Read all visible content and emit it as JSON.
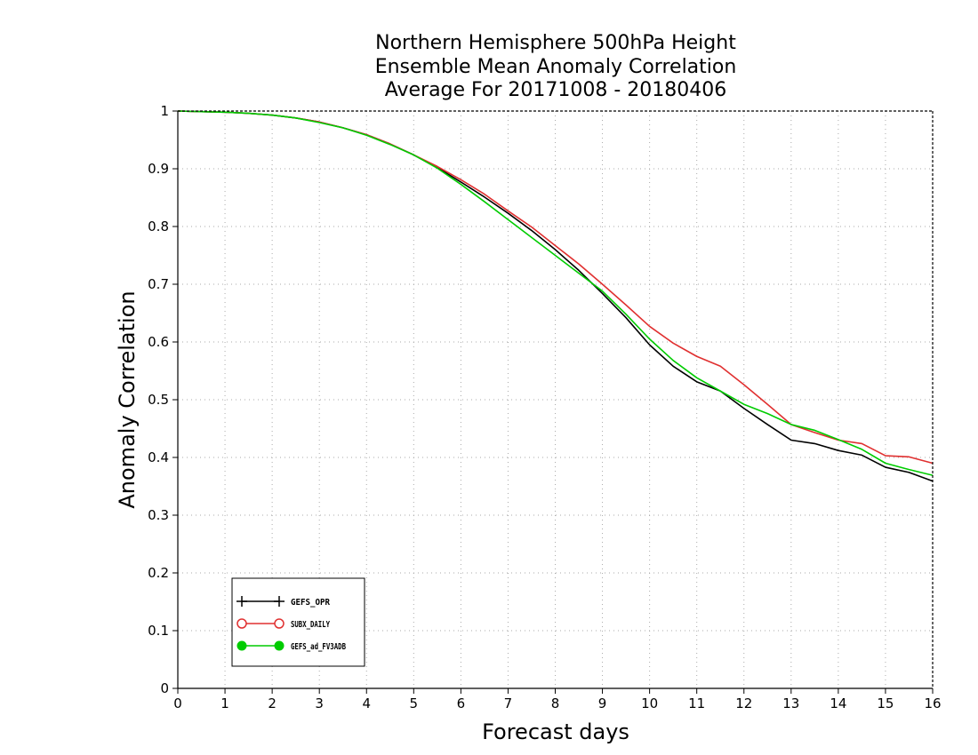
{
  "chart_data": {
    "type": "line",
    "title_lines": [
      "Northern Hemisphere 500hPa Height",
      "Ensemble Mean Anomaly Correlation",
      "Average For 20171008 - 20180406"
    ],
    "xlabel": "Forecast days",
    "ylabel": "Anomaly Correlation",
    "xlim": [
      0,
      16
    ],
    "ylim": [
      0,
      1
    ],
    "xticks": [
      "0",
      "1",
      "2",
      "3",
      "4",
      "5",
      "6",
      "7",
      "8",
      "9",
      "10",
      "11",
      "12",
      "13",
      "14",
      "15",
      "16"
    ],
    "yticks": [
      "0",
      "0.1",
      "0.2",
      "0.3",
      "0.4",
      "0.5",
      "0.6",
      "0.7",
      "0.8",
      "0.9",
      "1"
    ],
    "grid": true,
    "legend_position": "bottom-left",
    "x": [
      0,
      0.5,
      1,
      1.5,
      2,
      2.5,
      3,
      3.5,
      4,
      4.5,
      5,
      5.5,
      6,
      6.5,
      7,
      7.5,
      8,
      8.5,
      9,
      9.5,
      10,
      10.5,
      11,
      11.5,
      12,
      12.5,
      13,
      13.5,
      14,
      14.5,
      15,
      15.5,
      16
    ],
    "series": [
      {
        "name": "GEFS_OPR",
        "color": "#000000",
        "marker": "plus",
        "values": [
          1.0,
          0.999,
          0.998,
          0.996,
          0.993,
          0.988,
          0.981,
          0.971,
          0.959,
          0.943,
          0.924,
          0.902,
          0.877,
          0.851,
          0.823,
          0.793,
          0.76,
          0.724,
          0.684,
          0.642,
          0.595,
          0.558,
          0.531,
          0.515,
          0.485,
          0.457,
          0.43,
          0.424,
          0.412,
          0.404,
          0.383,
          0.374,
          0.359
        ]
      },
      {
        "name": "SUBX_DAILY",
        "color": "#e03030",
        "marker": "open-circle",
        "values": [
          1.0,
          0.999,
          0.998,
          0.996,
          0.993,
          0.988,
          0.981,
          0.971,
          0.959,
          0.943,
          0.924,
          0.904,
          0.881,
          0.856,
          0.827,
          0.799,
          0.767,
          0.735,
          0.7,
          0.664,
          0.627,
          0.598,
          0.575,
          0.558,
          0.526,
          0.492,
          0.457,
          0.443,
          0.43,
          0.424,
          0.403,
          0.401,
          0.39
        ]
      },
      {
        "name": "GEFS_ad_FV3ADB",
        "color": "#00cc00",
        "marker": "filled-circle",
        "values": [
          1.0,
          0.999,
          0.998,
          0.996,
          0.993,
          0.988,
          0.98,
          0.971,
          0.958,
          0.942,
          0.924,
          0.901,
          0.873,
          0.843,
          0.812,
          0.781,
          0.75,
          0.719,
          0.688,
          0.648,
          0.605,
          0.568,
          0.538,
          0.515,
          0.492,
          0.476,
          0.457,
          0.447,
          0.431,
          0.414,
          0.39,
          0.379,
          0.369
        ]
      }
    ]
  }
}
